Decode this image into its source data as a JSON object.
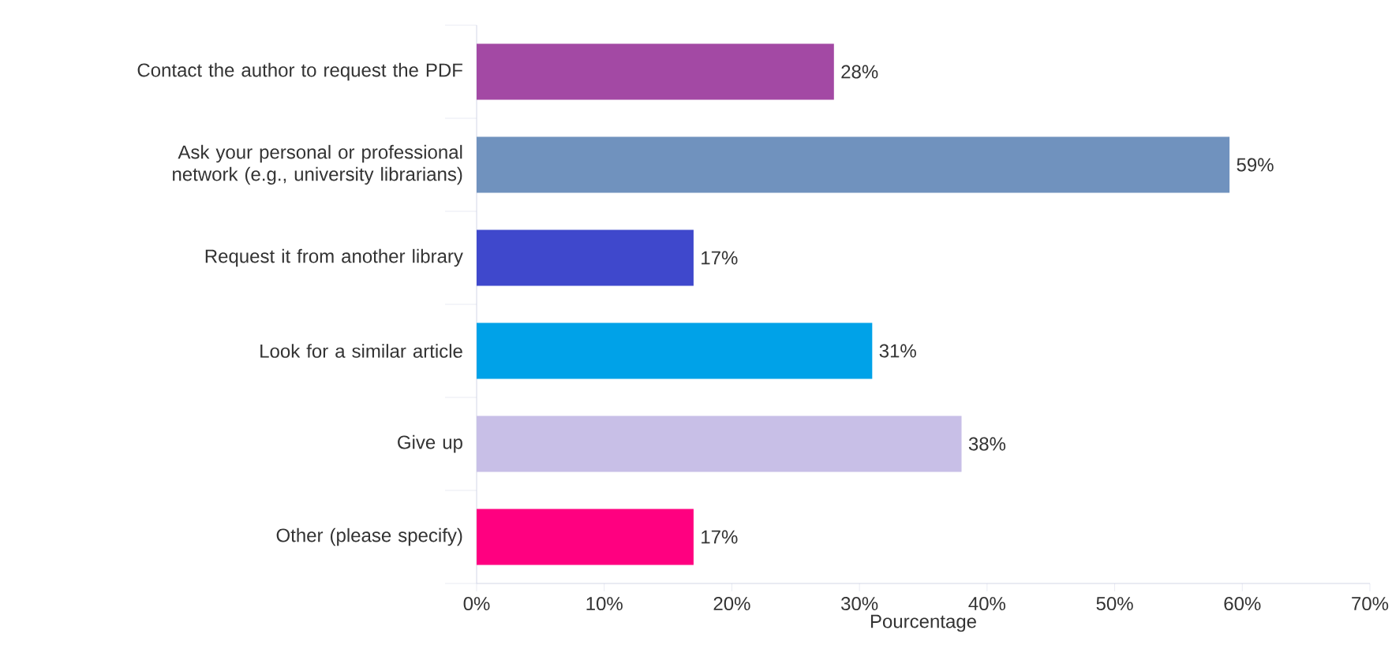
{
  "chart_data": {
    "type": "bar",
    "orientation": "horizontal",
    "xlabel": "Pourcentage",
    "categories": [
      "Contact the author to request the PDF",
      "Ask your personal or professional network (e.g., university librarians)",
      "Request it from another library",
      "Look for a similar article",
      "Give up",
      "Other (please specify)"
    ],
    "values": [
      28,
      59,
      17,
      31,
      38,
      17
    ],
    "colors": [
      "#a349a4",
      "#7092be",
      "#3f48cc",
      "#00a2e8",
      "#c8bfe7",
      "#ff0080"
    ],
    "value_labels": [
      "28%",
      "59%",
      "17%",
      "31%",
      "38%",
      "17%"
    ],
    "xlim": [
      0,
      70
    ],
    "xticks": [
      {
        "value": 0,
        "label": "0%"
      },
      {
        "value": 10,
        "label": "10%"
      },
      {
        "value": 20,
        "label": "20%"
      },
      {
        "value": 30,
        "label": "30%"
      },
      {
        "value": 40,
        "label": "40%"
      },
      {
        "value": 50,
        "label": "50%"
      },
      {
        "value": 60,
        "label": "60%"
      },
      {
        "value": 70,
        "label": "70%"
      }
    ]
  }
}
